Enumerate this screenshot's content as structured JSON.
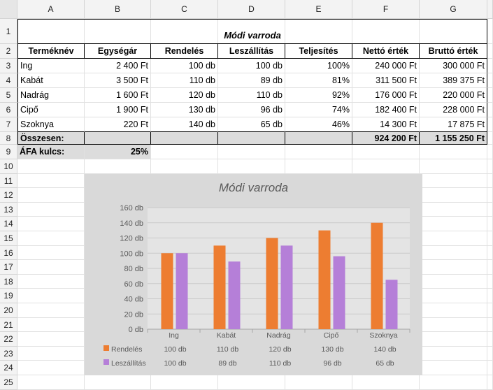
{
  "columns": [
    "A",
    "B",
    "C",
    "D",
    "E",
    "F",
    "G"
  ],
  "rows": [
    "1",
    "2",
    "3",
    "4",
    "5",
    "6",
    "7",
    "8",
    "9",
    "10",
    "11",
    "12",
    "13",
    "14",
    "15",
    "16",
    "17",
    "18",
    "19",
    "20",
    "21",
    "22",
    "23",
    "24",
    "25"
  ],
  "title": "Módi varroda",
  "headers": [
    "Terméknév",
    "Egységár",
    "Rendelés",
    "Leszállítás",
    "Teljesítés",
    "Nettó érték",
    "Bruttó érték"
  ],
  "table": [
    [
      "Ing",
      "2 400 Ft",
      "100 db",
      "100 db",
      "100%",
      "240 000 Ft",
      "300 000 Ft"
    ],
    [
      "Kabát",
      "3 500 Ft",
      "110 db",
      "89 db",
      "81%",
      "311 500 Ft",
      "389 375 Ft"
    ],
    [
      "Nadrág",
      "1 600 Ft",
      "120 db",
      "110 db",
      "92%",
      "176 000 Ft",
      "220 000 Ft"
    ],
    [
      "Cipő",
      "1 900 Ft",
      "130 db",
      "96 db",
      "74%",
      "182 400 Ft",
      "228 000 Ft"
    ],
    [
      "Szoknya",
      "220 Ft",
      "140 db",
      "65 db",
      "46%",
      "14 300 Ft",
      "17 875 Ft"
    ]
  ],
  "total": {
    "label": "Összesen:",
    "net": "924 200 Ft",
    "gross": "1 155 250 Ft"
  },
  "vat": {
    "label": "ÁFA kulcs:",
    "value": "25%"
  },
  "chart_data": {
    "type": "bar",
    "title": "Módi varroda",
    "categories": [
      "Ing",
      "Kabát",
      "Nadrág",
      "Cipő",
      "Szoknya"
    ],
    "series": [
      {
        "name": "Rendelés",
        "values": [
          100,
          110,
          120,
          130,
          140
        ],
        "color": "#ed7d31"
      },
      {
        "name": "Leszállítás",
        "values": [
          100,
          89,
          110,
          96,
          65
        ],
        "color": "#b57fd8"
      }
    ],
    "ylim": [
      0,
      160
    ],
    "yticks": [
      0,
      20,
      40,
      60,
      80,
      100,
      120,
      140,
      160
    ],
    "yunit": " db",
    "data_table": true,
    "grid": true
  }
}
